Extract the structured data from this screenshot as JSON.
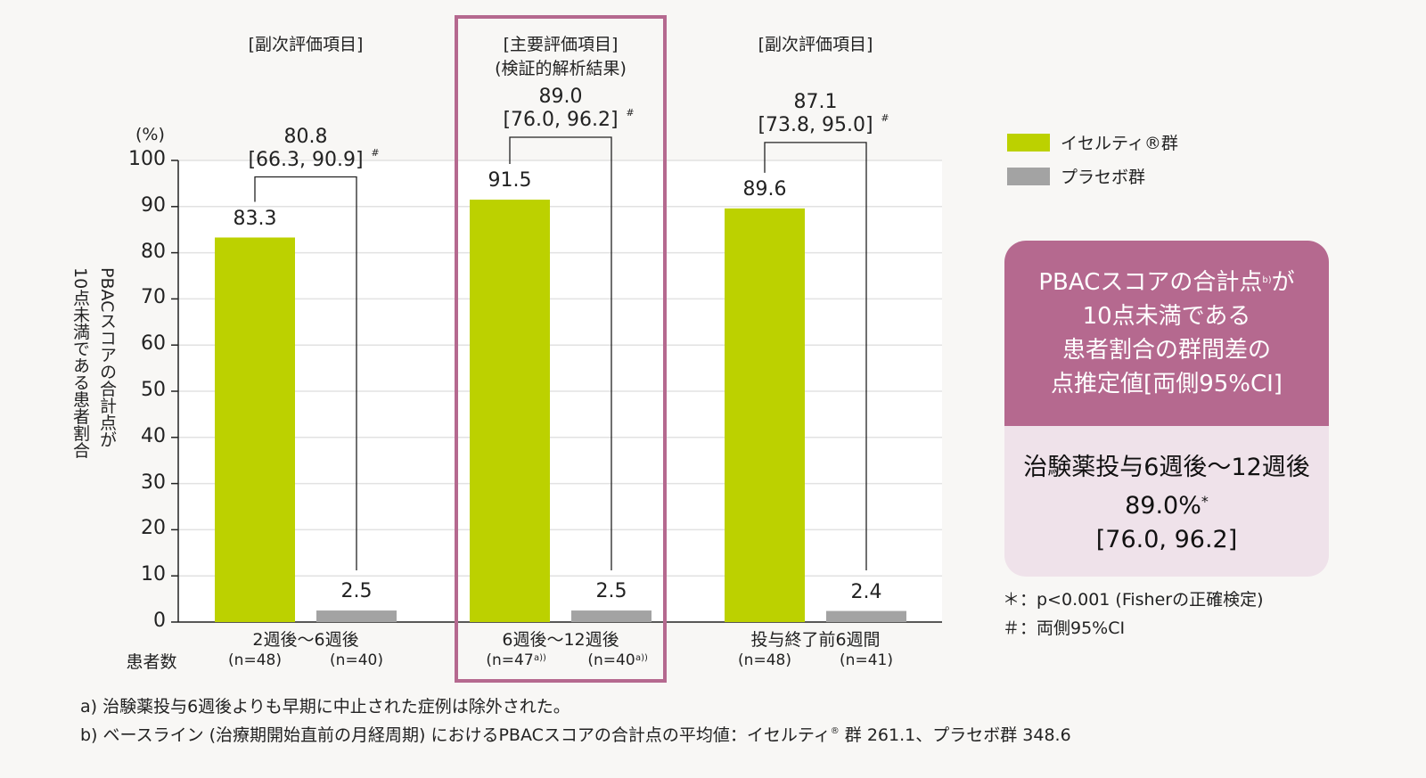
{
  "chart_data": {
    "type": "bar",
    "ylabel_unit": "(%)",
    "ylabel": [
      "PBACスコアの合計点が",
      "10点未満である患者割合"
    ],
    "ylim": [
      0,
      100
    ],
    "yticks": [
      "0",
      "10",
      "20",
      "30",
      "40",
      "50",
      "60",
      "70",
      "80",
      "90",
      "100"
    ],
    "grid": true,
    "legend_placement": "right",
    "series": [
      {
        "name": "イセルティ®群",
        "color": "#bcd100",
        "values": [
          83.3,
          91.5,
          89.6
        ]
      },
      {
        "name": "プラセボ群",
        "color": "#a3a3a3",
        "values": [
          2.5,
          2.5,
          2.4
        ]
      }
    ],
    "categories": [
      "2週後〜6週後",
      "6週後〜12週後",
      "投与終了前6週間"
    ],
    "group_headers": [
      [
        "[副次評価項目]"
      ],
      [
        "[主要評価項目]",
        "(検証的解析結果)"
      ],
      [
        "[副次評価項目]"
      ]
    ],
    "n_label": "患者数",
    "n": [
      [
        "(n=48)",
        "(n=40)"
      ],
      [
        "(n=47",
        "(n=40"
      ],
      [
        "(n=48)",
        "(n=41)"
      ]
    ],
    "n_sup": [
      [
        "",
        ""
      ],
      [
        "a))",
        "a))"
      ],
      [
        "",
        ""
      ]
    ],
    "differences": [
      {
        "value": "80.8",
        "ci": "[66.3, 90.9]",
        "mark": "#"
      },
      {
        "value": "89.0",
        "ci": "[76.0, 96.2]",
        "mark": "#"
      },
      {
        "value": "87.1",
        "ci": "[73.8, 95.0]",
        "mark": "#"
      }
    ],
    "highlight_color": "#b5698f",
    "highlight_group": 1
  },
  "summary_box": {
    "title_lines": [
      "PBACスコアの合計点",
      "10点未満である",
      "患者割合の群間差の",
      "点推定値[両側95%CI]"
    ],
    "title_sup": "b)",
    "title_suffix": "が",
    "period": "治験薬投与6週後〜12週後",
    "value": "89.0%",
    "value_mark": "*",
    "ci": "[76.0, 96.2]"
  },
  "notes": {
    "p": "＊：p<0.001 (Fisherの正確検定)",
    "ci": "＃：両側95%CI",
    "a": "a) 治験薬投与6週後よりも早期に中止された症例は除外された。",
    "b1": "b) ベースライン (治療期開始直前の月経周期) におけるPBACスコアの合計点の平均値：イセルティ",
    "b_sup": "®",
    "b2": " 群 261.1、プラセボ群 348.6"
  }
}
